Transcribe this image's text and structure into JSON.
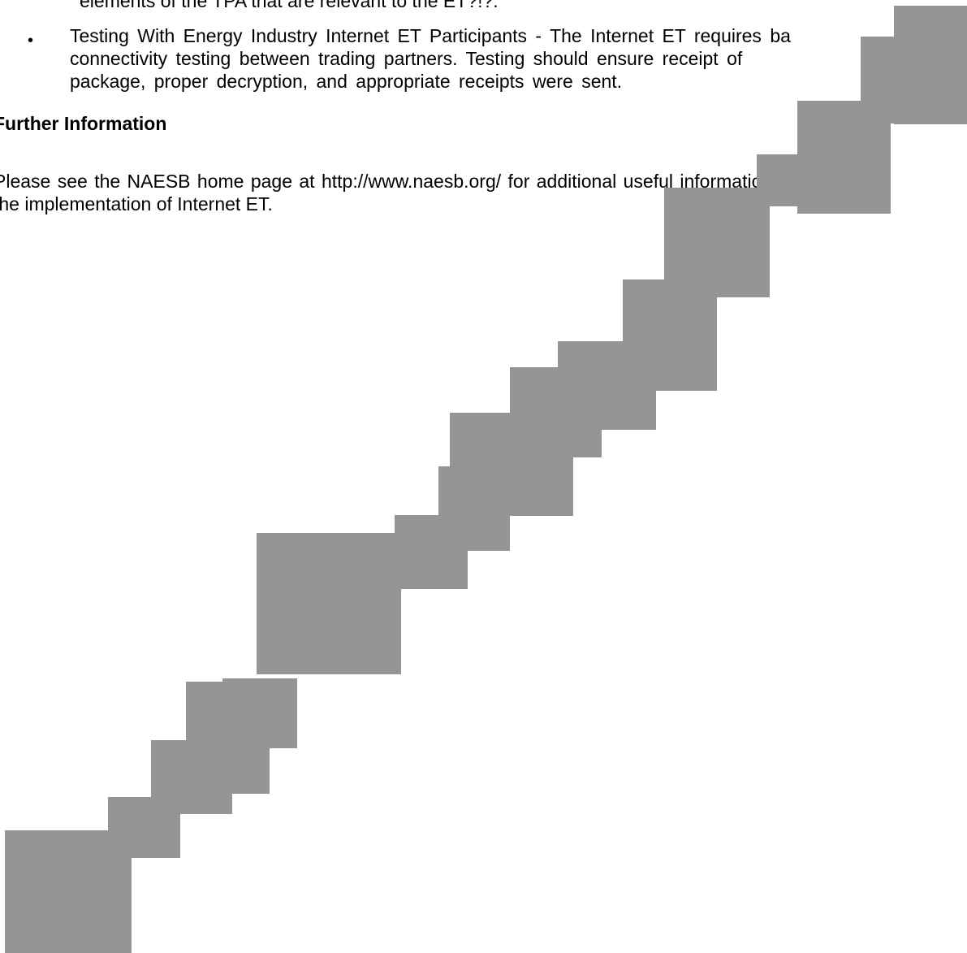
{
  "document": {
    "cut_top_line": "elements of the TPA that are relevant to the ET?!?.",
    "bullet_symbol": "•",
    "bullet_lines": [
      "Testing With Energy Industry Internet ET Participants - The Internet ET requires ba",
      "connectivity testing between trading partners.  Testing should  ensure receipt of",
      "package, proper decryption, and appropriate receipts were sent."
    ],
    "heading": "Further Information",
    "paragraph_lines": [
      "Please see the NAESB home page at http://www.naesb.org/ for additional useful information",
      "the implementation of Internet ET."
    ]
  },
  "colors": {
    "redaction": "#959595",
    "text": "#000000",
    "background": "#ffffff"
  }
}
